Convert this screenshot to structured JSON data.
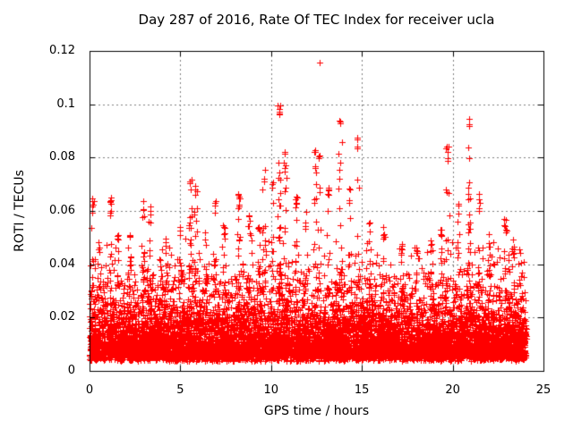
{
  "window": {
    "background": "#ffffff"
  },
  "chart_data": {
    "type": "scatter",
    "title": "Day 287 of 2016, Rate Of TEC Index for receiver ucla",
    "xlabel": "GPS time / hours",
    "ylabel": "ROTI / TECUs",
    "xlim": [
      0,
      25
    ],
    "ylim": [
      0,
      0.12
    ],
    "x_ticks": [
      0,
      5,
      10,
      15,
      20,
      25
    ],
    "x_tick_labels": [
      "0",
      "5",
      "10",
      "15",
      "20",
      "25"
    ],
    "y_ticks": [
      0,
      0.02,
      0.04,
      0.06,
      0.08,
      0.1,
      0.12
    ],
    "y_tick_labels": [
      "0",
      "0.02",
      "0.04",
      "0.06",
      "0.08",
      "0.1",
      "0.12"
    ],
    "grid": true,
    "grid_color": "#7f7f7f",
    "axis_color": "#000000",
    "marker": "plus",
    "marker_color": "#ff0000",
    "marker_size_px": 7,
    "legend": "none",
    "data_time_range": [
      0,
      24.05
    ],
    "seed": 1287,
    "baseline": {
      "points": 9000,
      "offset": 0.0045,
      "scale": 0.0085,
      "min": 0.0028,
      "cap": 0.049
    },
    "spikes": [
      [
        0.15,
        0.066,
        10
      ],
      [
        0.55,
        0.05,
        8
      ],
      [
        1.15,
        0.0655,
        12
      ],
      [
        1.55,
        0.052,
        8
      ],
      [
        2.2,
        0.054,
        8
      ],
      [
        2.95,
        0.066,
        12
      ],
      [
        3.35,
        0.062,
        10
      ],
      [
        4.2,
        0.05,
        8
      ],
      [
        5.0,
        0.056,
        9
      ],
      [
        5.55,
        0.073,
        18
      ],
      [
        5.85,
        0.071,
        12
      ],
      [
        6.4,
        0.052,
        8
      ],
      [
        6.9,
        0.064,
        10
      ],
      [
        7.4,
        0.057,
        9
      ],
      [
        8.25,
        0.067,
        12
      ],
      [
        8.8,
        0.06,
        9
      ],
      [
        9.3,
        0.056,
        8
      ],
      [
        9.6,
        0.076,
        12
      ],
      [
        10.1,
        0.071,
        10
      ],
      [
        10.45,
        0.101,
        30
      ],
      [
        10.75,
        0.082,
        10
      ],
      [
        11.35,
        0.066,
        9
      ],
      [
        11.9,
        0.06,
        8
      ],
      [
        12.4,
        0.083,
        10
      ],
      [
        12.65,
        0.0825,
        8
      ],
      [
        13.15,
        0.07,
        9
      ],
      [
        13.8,
        0.094,
        16
      ],
      [
        14.3,
        0.07,
        9
      ],
      [
        14.75,
        0.088,
        12
      ],
      [
        15.4,
        0.057,
        8
      ],
      [
        16.2,
        0.0555,
        9
      ],
      [
        17.2,
        0.049,
        8
      ],
      [
        18.0,
        0.047,
        7
      ],
      [
        18.8,
        0.051,
        8
      ],
      [
        19.35,
        0.056,
        8
      ],
      [
        19.7,
        0.085,
        14
      ],
      [
        20.3,
        0.063,
        9
      ],
      [
        20.9,
        0.0955,
        20
      ],
      [
        21.45,
        0.068,
        9
      ],
      [
        22.0,
        0.052,
        8
      ],
      [
        22.9,
        0.058,
        10
      ],
      [
        23.35,
        0.05,
        8
      ],
      [
        23.7,
        0.046,
        6
      ]
    ],
    "max_point": {
      "t": 12.65,
      "v": 0.1155
    }
  }
}
